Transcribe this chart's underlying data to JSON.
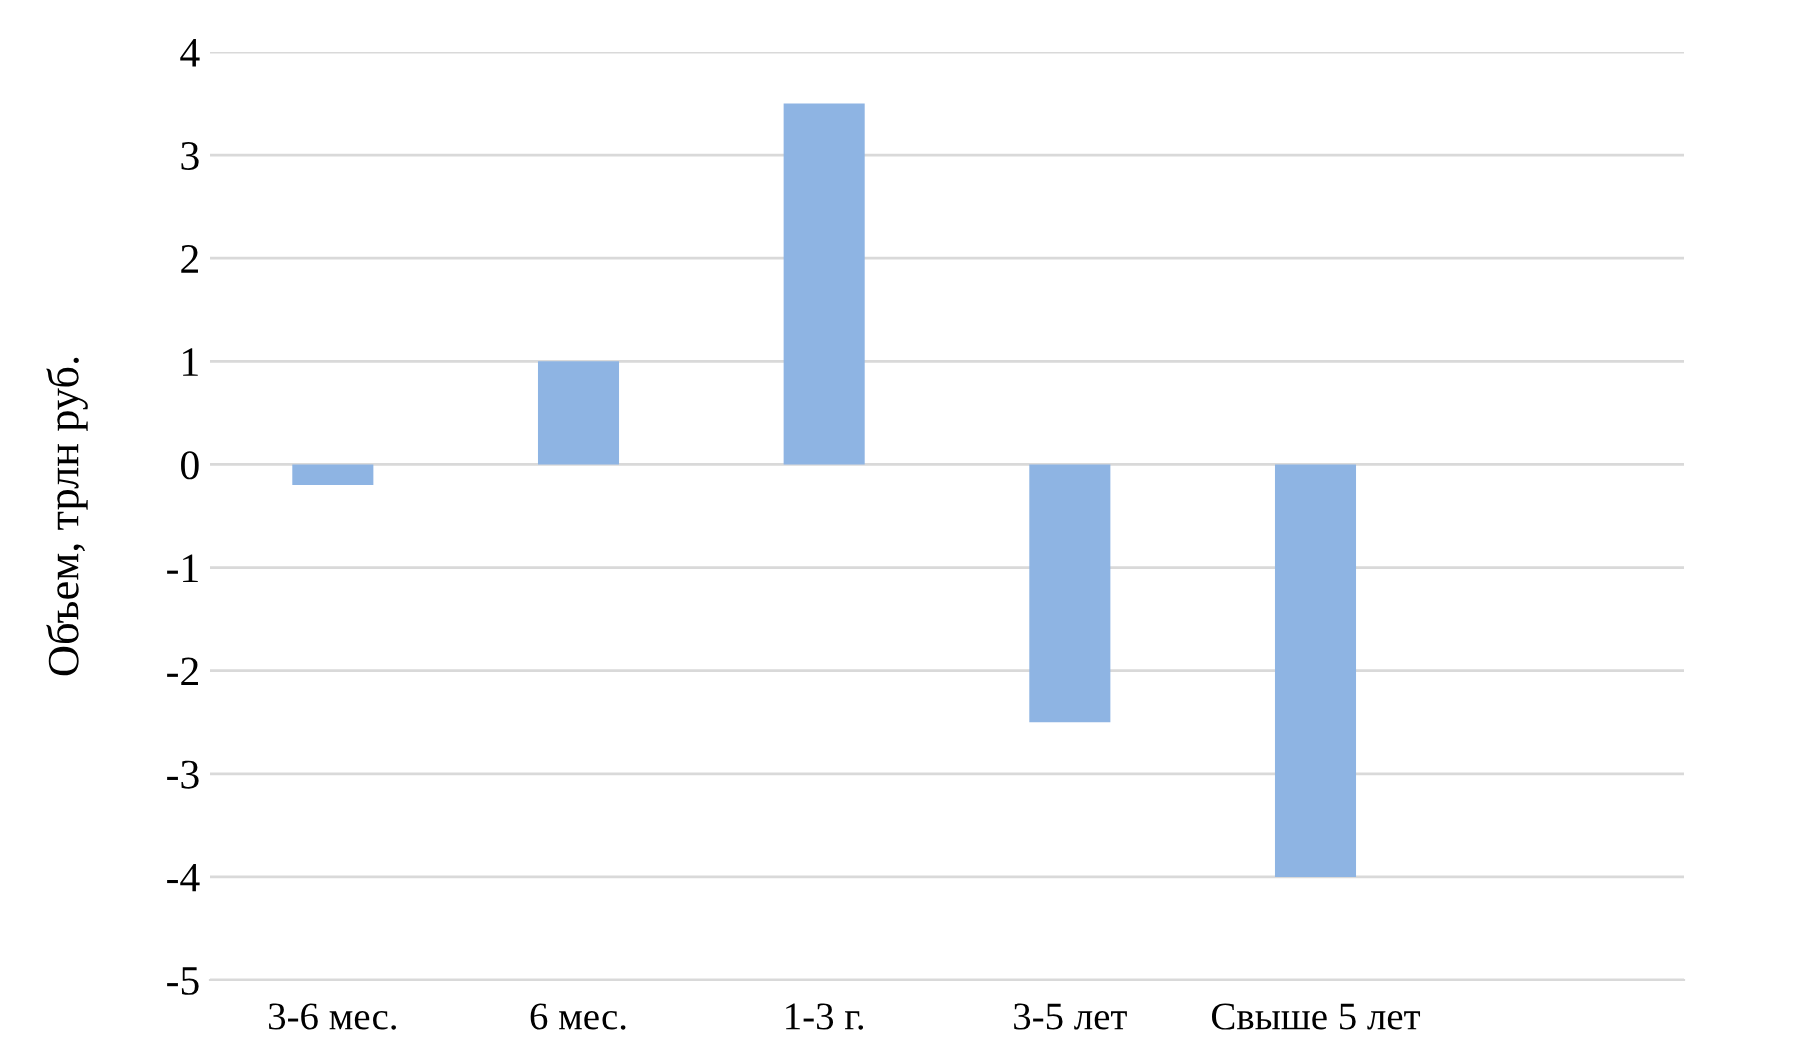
{
  "chart_data": {
    "type": "bar",
    "ylabel": "Объем, трлн руб.",
    "categories": [
      "3-6 мес.",
      "6 мес.",
      "1-3 г.",
      "3-5 лет",
      "Свыше 5 лет",
      null
    ],
    "values": [
      -0.2,
      1,
      3.5,
      -2.5,
      -4,
      null
    ],
    "color": "#8eb4e3",
    "ylim": [
      -5,
      4
    ],
    "yticks": [
      -5,
      -4,
      -3,
      -2,
      -1,
      0,
      1,
      2,
      3,
      4
    ],
    "grid": "y",
    "legend": false
  }
}
